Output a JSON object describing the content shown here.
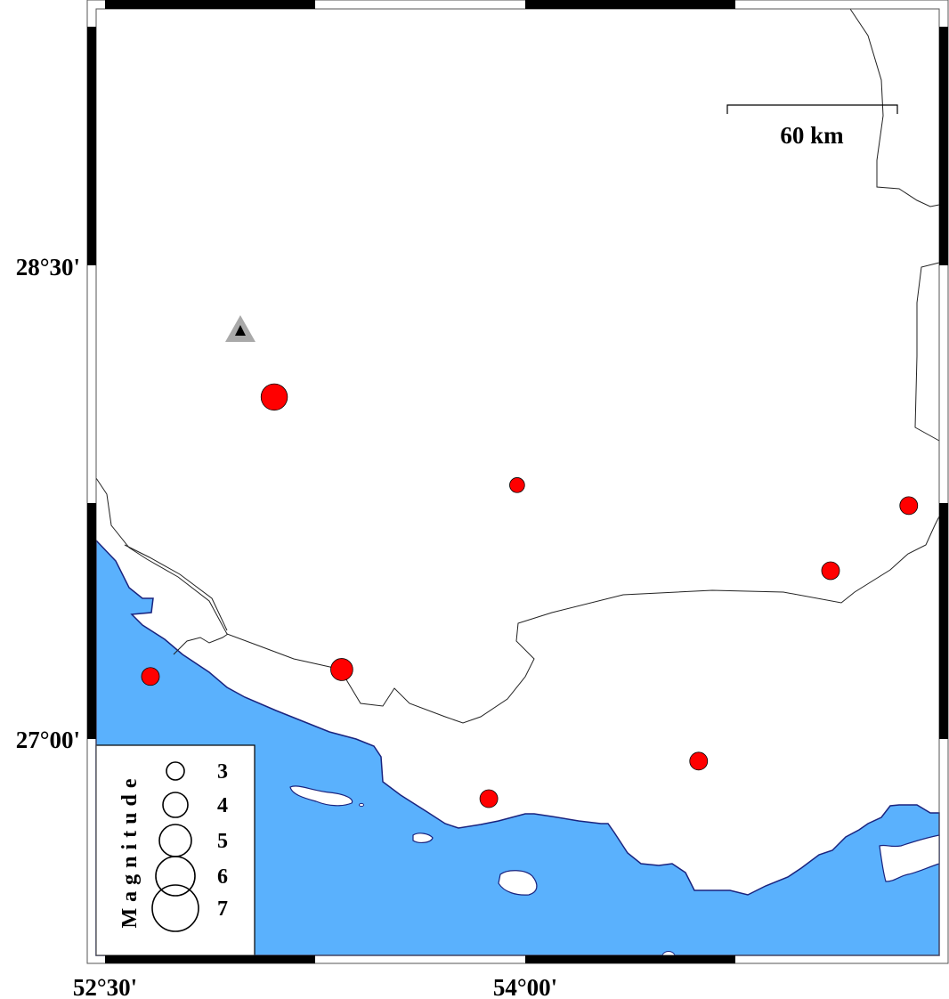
{
  "map": {
    "region": {
      "lon_min": 52.5,
      "lon_max": 55.5,
      "lat_min": 26.25,
      "lat_max": 28.96
    },
    "colors": {
      "sea": "#5ab1fd",
      "land": "#ffffff",
      "coast": "#1a237e",
      "event": "#ff0000",
      "station_outer": "#a9a9a9",
      "station_inner": "#000000"
    },
    "y_ticks": [
      "28°30'",
      "27°00'"
    ],
    "x_ticks": [
      "52°30'",
      "54°00'"
    ],
    "scale_bar": {
      "label": "60 km"
    },
    "legend": {
      "title": "Magnitude",
      "magnitudes": [
        "3",
        "4",
        "5",
        "6",
        "7"
      ]
    },
    "station": {
      "lon": 52.983,
      "lat": 28.294,
      "icon": "triangle-icon"
    },
    "events": [
      {
        "lon": 53.104,
        "lat": 28.083,
        "mag": 4.2
      },
      {
        "lon": 53.971,
        "lat": 27.804,
        "mag": 2.6
      },
      {
        "lon": 55.369,
        "lat": 27.739,
        "mag": 3.0
      },
      {
        "lon": 55.09,
        "lat": 27.533,
        "mag": 3.0
      },
      {
        "lon": 53.345,
        "lat": 27.22,
        "mag": 3.6
      },
      {
        "lon": 52.662,
        "lat": 27.198,
        "mag": 3.0
      },
      {
        "lon": 54.619,
        "lat": 26.93,
        "mag": 3.0
      },
      {
        "lon": 53.87,
        "lat": 26.811,
        "mag": 3.0
      }
    ]
  }
}
